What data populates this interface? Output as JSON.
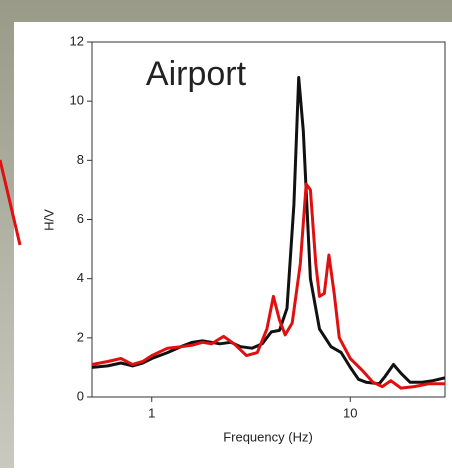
{
  "chart_data": {
    "type": "line",
    "annotation": "Airport",
    "xlabel": "Frequency (Hz)",
    "ylabel": "H/V",
    "xscale": "log",
    "xlim": [
      0.5,
      30
    ],
    "xticks": [
      1,
      10
    ],
    "ylim": [
      0,
      12
    ],
    "yticks": [
      0,
      2,
      4,
      6,
      8,
      10,
      12
    ],
    "grid": false,
    "series": [
      {
        "color": "#111111",
        "x": [
          0.5,
          0.6,
          0.7,
          0.8,
          0.9,
          1.0,
          1.2,
          1.4,
          1.6,
          1.8,
          2.0,
          2.2,
          2.5,
          2.8,
          3.2,
          3.6,
          4.0,
          4.4,
          4.8,
          5.2,
          5.5,
          5.8,
          6.3,
          7.0,
          8.0,
          9.0,
          10,
          11,
          12,
          14,
          15,
          16.5,
          18,
          20,
          23,
          26,
          30
        ],
        "values": [
          1.0,
          1.05,
          1.15,
          1.05,
          1.15,
          1.3,
          1.5,
          1.7,
          1.85,
          1.9,
          1.85,
          1.8,
          1.85,
          1.7,
          1.65,
          1.8,
          2.2,
          2.25,
          3.0,
          6.5,
          10.8,
          9.0,
          4.0,
          2.3,
          1.7,
          1.5,
          1.0,
          0.6,
          0.5,
          0.45,
          0.7,
          1.1,
          0.8,
          0.5,
          0.5,
          0.55,
          0.65
        ]
      },
      {
        "color": "#e01010",
        "x": [
          0.5,
          0.6,
          0.7,
          0.8,
          0.9,
          1.0,
          1.2,
          1.4,
          1.6,
          1.8,
          2.0,
          2.3,
          2.6,
          3.0,
          3.4,
          3.8,
          4.1,
          4.4,
          4.7,
          5.1,
          5.6,
          6.0,
          6.3,
          6.7,
          7.0,
          7.4,
          7.8,
          8.3,
          8.8,
          10,
          11.5,
          13,
          14.5,
          16,
          18,
          21,
          25,
          30
        ],
        "values": [
          1.1,
          1.2,
          1.3,
          1.1,
          1.2,
          1.4,
          1.65,
          1.7,
          1.75,
          1.85,
          1.8,
          2.05,
          1.8,
          1.4,
          1.5,
          2.3,
          3.4,
          2.6,
          2.1,
          2.5,
          4.5,
          7.2,
          7.0,
          4.5,
          3.4,
          3.5,
          4.8,
          3.5,
          2.0,
          1.3,
          0.9,
          0.5,
          0.35,
          0.55,
          0.3,
          0.35,
          0.45,
          0.45
        ]
      }
    ]
  }
}
